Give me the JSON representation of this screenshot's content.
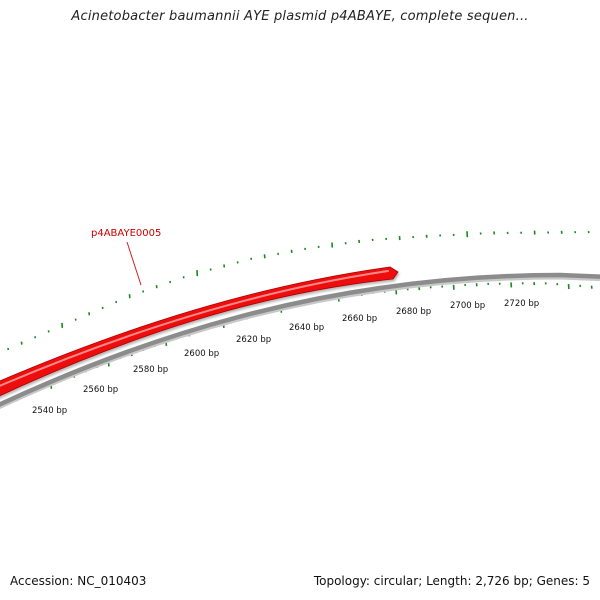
{
  "header": {
    "title": "Acinetobacter baumannii AYE plasmid p4ABAYE, complete sequen..."
  },
  "footer": {
    "accession": "Accession: NC_010403",
    "summary": "Topology: circular; Length: 2,726 bp; Genes: 5"
  },
  "map": {
    "backbone_color": "#8c8c8c",
    "tick_color": "#1a8a1a",
    "scale_labels": [
      "2540 bp",
      "2560 bp",
      "2580 bp",
      "2600 bp",
      "2620 bp",
      "2640 bp",
      "2660 bp",
      "2680 bp",
      "2700 bp",
      "2720 bp"
    ],
    "gene": {
      "name": "p4ABAYE0005",
      "color": "#ee1111",
      "label_color": "#cc0000"
    }
  }
}
